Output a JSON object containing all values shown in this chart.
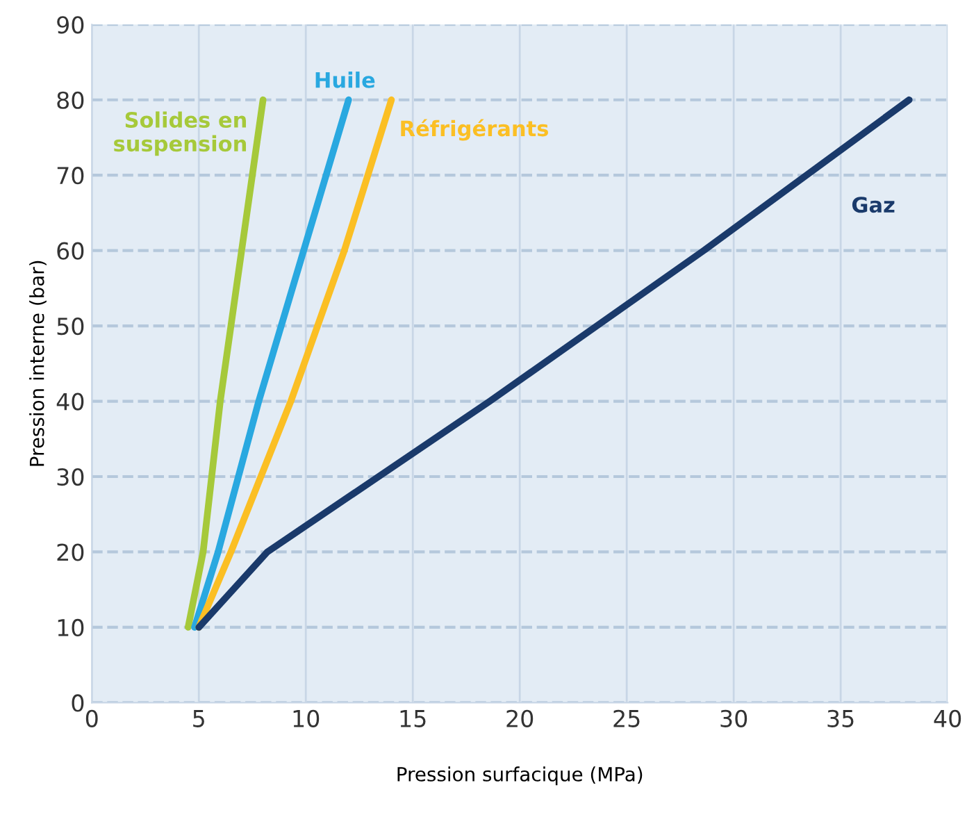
{
  "chart_data": {
    "type": "line",
    "xlabel": "Pression surfacique (MPa)",
    "ylabel": "Pression interne (bar)",
    "xlim": [
      0,
      40
    ],
    "ylim": [
      0,
      90
    ],
    "xticks": [
      0,
      5,
      10,
      15,
      20,
      25,
      30,
      35,
      40
    ],
    "yticks": [
      0,
      10,
      20,
      30,
      40,
      50,
      60,
      70,
      80,
      90
    ],
    "grid": true,
    "legend": false,
    "series": [
      {
        "name": "Solides en suspension",
        "color": "#a6c93a",
        "x": [
          4.5,
          5.2,
          6.0,
          7.0,
          8.0
        ],
        "values": [
          10,
          20,
          40,
          60,
          80
        ]
      },
      {
        "name": "Huile",
        "color": "#29a8e0",
        "x": [
          4.8,
          5.9,
          7.8,
          9.9,
          12.0
        ],
        "values": [
          10,
          20,
          40,
          60,
          80
        ]
      },
      {
        "name": "Réfrigérants",
        "color": "#fbbf24",
        "x": [
          5.0,
          6.5,
          9.3,
          11.8,
          14.0
        ],
        "values": [
          10,
          20,
          40,
          60,
          80
        ]
      },
      {
        "name": "Gaz",
        "color": "#1a3a6b",
        "x": [
          5.0,
          8.2,
          18.6,
          28.6,
          38.2
        ],
        "values": [
          10,
          20,
          40,
          60,
          80
        ]
      }
    ]
  }
}
